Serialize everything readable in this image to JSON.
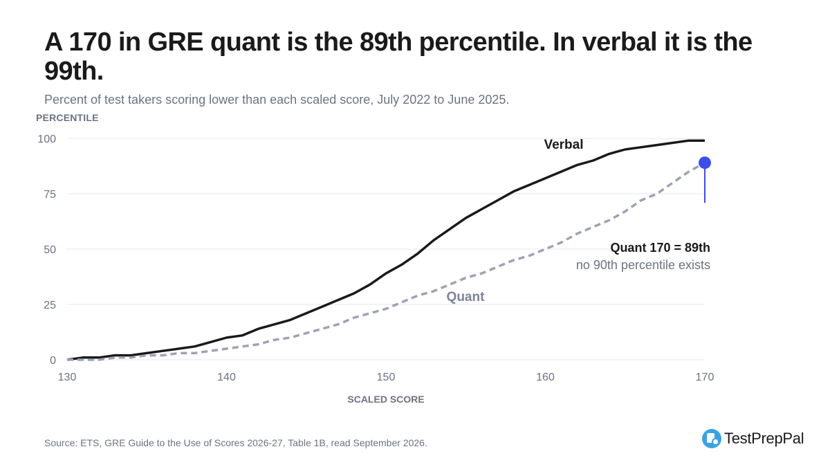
{
  "header": {
    "title": "A 170 in GRE quant is the 89th percentile. In verbal it is the 99th.",
    "subtitle": "Percent of test takers scoring lower than each scaled score, July 2022 to June 2025."
  },
  "footer": {
    "source": "Source: ETS, GRE Guide to the Use of Scores 2026-27, Table 1B, read September 2026.",
    "brand_name": "TestPrepPal",
    "brand_icon": "document-search-icon"
  },
  "colors": {
    "verbal": "#1a1a1a",
    "quant": "#9ca3b3",
    "highlight": "#3b4ee8",
    "grid": "#e5e7eb",
    "axis_text": "#6b7280"
  },
  "chart_data": {
    "type": "line",
    "ylabel": "PERCENTILE",
    "xlabel": "SCALED SCORE",
    "xlim": [
      130,
      170
    ],
    "ylim": [
      0,
      100
    ],
    "x_ticks": [
      130,
      140,
      150,
      160,
      170
    ],
    "y_ticks": [
      0,
      25,
      50,
      75,
      100
    ],
    "grid": "horizontal",
    "x": [
      130,
      131,
      132,
      133,
      134,
      135,
      136,
      137,
      138,
      139,
      140,
      141,
      142,
      143,
      144,
      145,
      146,
      147,
      148,
      149,
      150,
      151,
      152,
      153,
      154,
      155,
      156,
      157,
      158,
      159,
      160,
      161,
      162,
      163,
      164,
      165,
      166,
      167,
      168,
      169,
      170
    ],
    "series": [
      {
        "name": "Verbal",
        "style": "solid",
        "values": [
          0,
          1,
          1,
          2,
          2,
          3,
          4,
          5,
          6,
          8,
          10,
          11,
          14,
          16,
          18,
          21,
          24,
          27,
          30,
          34,
          39,
          43,
          48,
          54,
          59,
          64,
          68,
          72,
          76,
          79,
          82,
          85,
          88,
          90,
          93,
          95,
          96,
          97,
          98,
          99,
          99
        ]
      },
      {
        "name": "Quant",
        "style": "dashed",
        "values": [
          0,
          0,
          0,
          1,
          1,
          2,
          2,
          3,
          3,
          4,
          5,
          6,
          7,
          9,
          10,
          12,
          14,
          16,
          19,
          21,
          23,
          26,
          29,
          31,
          34,
          37,
          39,
          42,
          45,
          47,
          50,
          53,
          57,
          60,
          63,
          67,
          72,
          75,
          80,
          85,
          89
        ]
      }
    ],
    "annotations": {
      "highlight_score": 170,
      "highlight_value": 89,
      "line_1": "Quant 170 = 89th",
      "line_2": "no 90th percentile exists"
    }
  }
}
